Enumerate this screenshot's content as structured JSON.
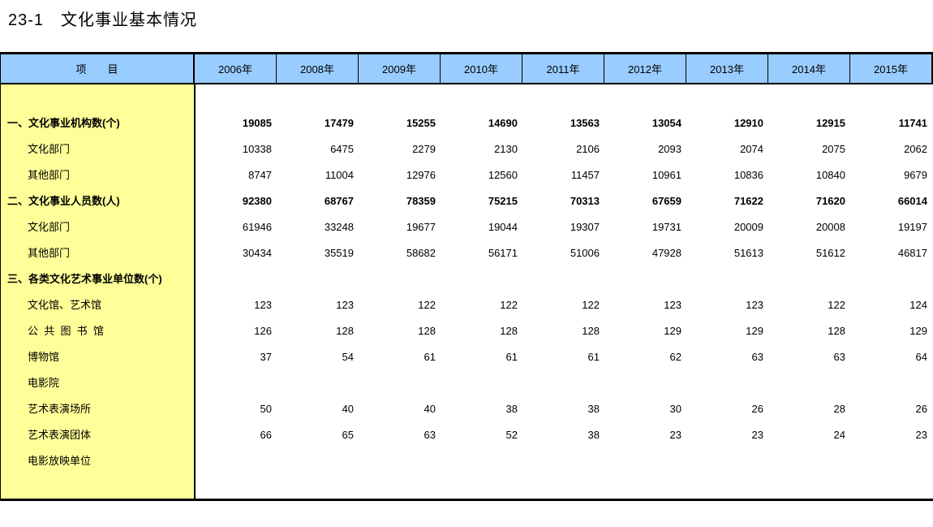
{
  "title": "23-1　文化事业基本情况",
  "colors": {
    "header_bg": "#99CCFF",
    "label_column_bg": "#FFFF99",
    "border": "#000000",
    "page_bg": "#FFFFFF",
    "text": "#000000"
  },
  "table": {
    "item_header": "项　　目",
    "year_headers": [
      "2006年",
      "2008年",
      "2009年",
      "2010年",
      "2011年",
      "2012年",
      "2013年",
      "2014年",
      "2015年"
    ]
  },
  "chart_data": {
    "type": "table",
    "title": "23-1 文化事业基本情况",
    "columns": [
      "项目",
      "2006年",
      "2008年",
      "2009年",
      "2010年",
      "2011年",
      "2012年",
      "2013年",
      "2014年",
      "2015年"
    ],
    "rows": [
      {
        "label": "一、文化事业机构数(个)",
        "bold": true,
        "indent": 0,
        "values": [
          "19085",
          "17479",
          "15255",
          "14690",
          "13563",
          "13054",
          "12910",
          "12915",
          "11741"
        ]
      },
      {
        "label": "文化部门",
        "bold": false,
        "indent": 1,
        "values": [
          "10338",
          "6475",
          "2279",
          "2130",
          "2106",
          "2093",
          "2074",
          "2075",
          "2062"
        ]
      },
      {
        "label": "其他部门",
        "bold": false,
        "indent": 1,
        "values": [
          "8747",
          "11004",
          "12976",
          "12560",
          "11457",
          "10961",
          "10836",
          "10840",
          "9679"
        ]
      },
      {
        "label": "二、文化事业人员数(人)",
        "bold": true,
        "indent": 0,
        "values": [
          "92380",
          "68767",
          "78359",
          "75215",
          "70313",
          "67659",
          "71622",
          "71620",
          "66014"
        ]
      },
      {
        "label": "文化部门",
        "bold": false,
        "indent": 1,
        "values": [
          "61946",
          "33248",
          "19677",
          "19044",
          "19307",
          "19731",
          "20009",
          "20008",
          "19197"
        ]
      },
      {
        "label": "其他部门",
        "bold": false,
        "indent": 1,
        "values": [
          "30434",
          "35519",
          "58682",
          "56171",
          "51006",
          "47928",
          "51613",
          "51612",
          "46817"
        ]
      },
      {
        "label": "三、各类文化艺术事业单位数(个)",
        "bold": true,
        "indent": 0,
        "values": [
          "",
          "",
          "",
          "",
          "",
          "",
          "",
          "",
          ""
        ]
      },
      {
        "label": "文化馆、艺术馆",
        "bold": false,
        "indent": 1,
        "values": [
          "123",
          "123",
          "122",
          "122",
          "122",
          "123",
          "123",
          "122",
          "124"
        ]
      },
      {
        "label": "公  共  图  书  馆",
        "bold": false,
        "indent": 1,
        "values": [
          "126",
          "128",
          "128",
          "128",
          "128",
          "129",
          "129",
          "128",
          "129"
        ]
      },
      {
        "label": "博物馆",
        "bold": false,
        "indent": 1,
        "values": [
          "37",
          "54",
          "61",
          "61",
          "61",
          "62",
          "63",
          "63",
          "64"
        ]
      },
      {
        "label": "电影院",
        "bold": false,
        "indent": 1,
        "values": [
          "",
          "",
          "",
          "",
          "",
          "",
          "",
          "",
          ""
        ]
      },
      {
        "label": "艺术表演场所",
        "bold": false,
        "indent": 1,
        "values": [
          "50",
          "40",
          "40",
          "38",
          "38",
          "30",
          "26",
          "28",
          "26"
        ]
      },
      {
        "label": "艺术表演团体",
        "bold": false,
        "indent": 1,
        "values": [
          "66",
          "65",
          "63",
          "52",
          "38",
          "23",
          "23",
          "24",
          "23"
        ]
      },
      {
        "label": "电影放映单位",
        "bold": false,
        "indent": 1,
        "values": [
          "",
          "",
          "",
          "",
          "",
          "",
          "",
          "",
          ""
        ]
      }
    ]
  }
}
